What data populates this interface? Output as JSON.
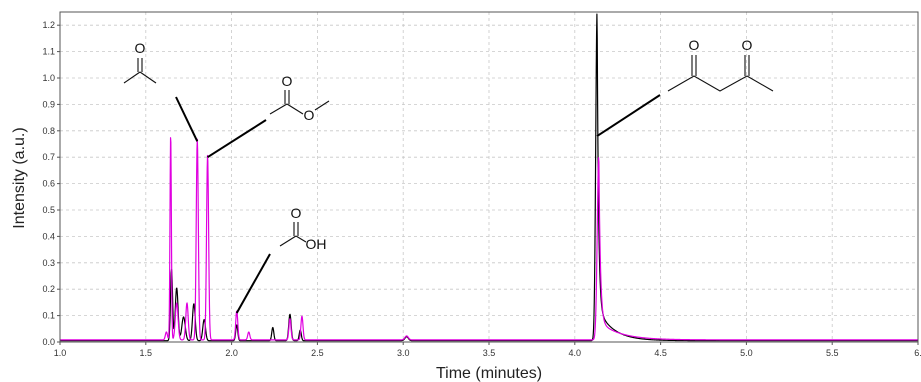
{
  "chart_data": {
    "type": "line",
    "title": "",
    "xlabel": "Time (minutes)",
    "ylabel": "Intensity (a.u.)",
    "xlim": [
      1.0,
      6.0
    ],
    "ylim": [
      0.0,
      1.25
    ],
    "x_ticks": [
      "1.0",
      "1.5",
      "2.0",
      "2.5",
      "3.0",
      "3.5",
      "4.0",
      "4.5",
      "5.0",
      "5.5",
      "6."
    ],
    "y_ticks": [
      "0.0",
      "0.1",
      "0.2",
      "0.3",
      "0.4",
      "0.5",
      "0.6",
      "0.7",
      "0.8",
      "0.9",
      "1.0",
      "1.1",
      "1.2"
    ],
    "grid": true,
    "series": [
      {
        "color": "#000000",
        "baseline": 0.005,
        "peaks": [
          {
            "x": 1.65,
            "y": 0.27,
            "w": 0.006
          },
          {
            "x": 1.68,
            "y": 0.2,
            "w": 0.008
          },
          {
            "x": 1.72,
            "y": 0.09,
            "w": 0.01
          },
          {
            "x": 1.78,
            "y": 0.14,
            "w": 0.008
          },
          {
            "x": 1.84,
            "y": 0.08,
            "w": 0.008
          },
          {
            "x": 2.03,
            "y": 0.06,
            "w": 0.006
          },
          {
            "x": 2.24,
            "y": 0.05,
            "w": 0.006
          },
          {
            "x": 2.34,
            "y": 0.1,
            "w": 0.007
          },
          {
            "x": 2.4,
            "y": 0.04,
            "w": 0.006
          },
          {
            "x": 3.02,
            "y": 0.015,
            "w": 0.01
          },
          {
            "x": 4.13,
            "y": 1.25,
            "w": 0.008,
            "tail": 0.09
          }
        ]
      },
      {
        "color": "#e000e0",
        "baseline": 0.008,
        "peaks": [
          {
            "x": 1.62,
            "y": 0.03,
            "w": 0.006
          },
          {
            "x": 1.645,
            "y": 0.78,
            "w": 0.004
          },
          {
            "x": 1.68,
            "y": 0.14,
            "w": 0.008
          },
          {
            "x": 1.74,
            "y": 0.14,
            "w": 0.007
          },
          {
            "x": 1.8,
            "y": 0.76,
            "w": 0.006
          },
          {
            "x": 1.86,
            "y": 0.7,
            "w": 0.006
          },
          {
            "x": 2.03,
            "y": 0.11,
            "w": 0.006
          },
          {
            "x": 2.1,
            "y": 0.03,
            "w": 0.006
          },
          {
            "x": 2.34,
            "y": 0.08,
            "w": 0.006
          },
          {
            "x": 2.41,
            "y": 0.09,
            "w": 0.006
          },
          {
            "x": 3.02,
            "y": 0.015,
            "w": 0.01
          },
          {
            "x": 4.14,
            "y": 0.7,
            "w": 0.009,
            "tail": 0.12
          }
        ]
      }
    ],
    "annotations": [
      {
        "label": "O",
        "target_x": 1.8,
        "target_y": 0.76,
        "color": "#000000"
      },
      {
        "label": "O",
        "label2": "O",
        "target_x": 1.86,
        "target_y": 0.7,
        "color": "#000000"
      },
      {
        "label": "O",
        "label2": "OH",
        "target_x": 2.03,
        "target_y": 0.11,
        "color": "#000000"
      },
      {
        "label": "O",
        "label2": "O",
        "target_x": 4.13,
        "target_y": 0.78,
        "color": "#000000"
      }
    ]
  }
}
